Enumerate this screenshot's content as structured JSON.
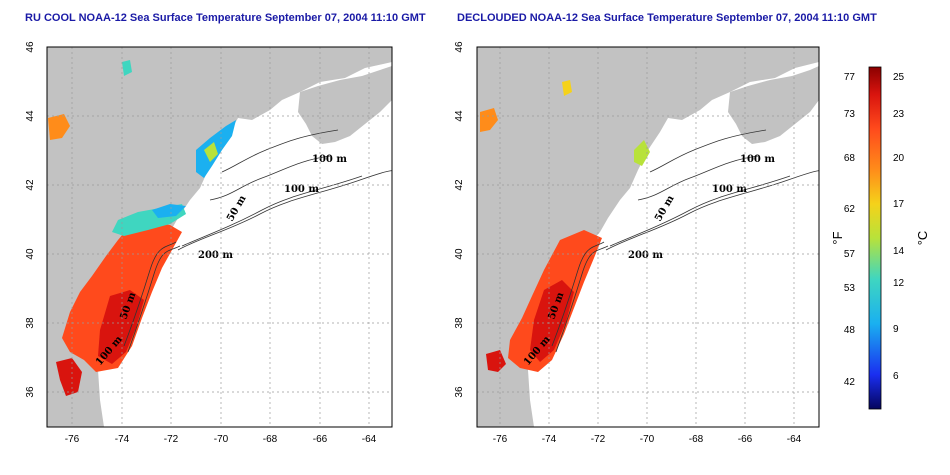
{
  "titles": {
    "left": "RU COOL NOAA-12 Sea Surface Temperature September 07, 2004 11:10 GMT",
    "right": "DECLOUDED NOAA-12 Sea Surface Temperature September 07, 2004 11:10 GMT"
  },
  "axes": {
    "x_ticks": [
      "-76",
      "-74",
      "-72",
      "-70",
      "-68",
      "-66",
      "-64"
    ],
    "y_ticks": [
      "46",
      "44",
      "42",
      "40",
      "38",
      "36"
    ]
  },
  "contours": {
    "left": [
      "100 m",
      "100 m",
      "50 m",
      "200 m",
      "50 m",
      "100 m"
    ],
    "right": [
      "100 m",
      "100 m",
      "50 m",
      "200 m",
      "50 m",
      "100 m"
    ]
  },
  "colorbar": {
    "fahrenheit_label": "°F",
    "celsius_label": "°C",
    "fahrenheit_ticks": [
      "77",
      "73",
      "68",
      "62",
      "57",
      "53",
      "48",
      "42"
    ],
    "celsius_ticks": [
      "25",
      "23",
      "20",
      "17",
      "14",
      "12",
      "9",
      "6"
    ],
    "colors": [
      "#8b0000",
      "#d9140e",
      "#ff4a1c",
      "#ff8c1a",
      "#f5d21a",
      "#b8e23a",
      "#3fd6c0",
      "#1bb0f0",
      "#1a5ef5",
      "#1010a8",
      "#05055e"
    ]
  },
  "colors": {
    "land": "#c2c2c2",
    "sea_missing": "#ffffff",
    "title": "#1a1aa6"
  }
}
